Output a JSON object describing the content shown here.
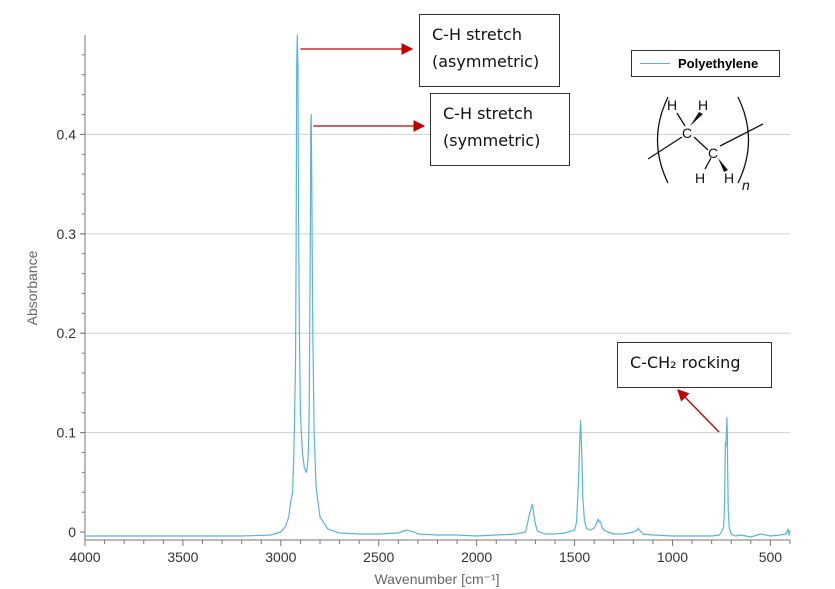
{
  "colors": {
    "series": "#5ab4e0",
    "arrow": "#c00000",
    "grid": "#d0d0d0",
    "axis": "#777777"
  },
  "chart_data": {
    "type": "line",
    "title": "",
    "xlabel": "Wavenumber [cm⁻¹]",
    "ylabel": "Absorbance",
    "xlim": [
      4000,
      400
    ],
    "ylim": [
      -0.008,
      0.5
    ],
    "x_reversed": true,
    "x_ticks": [
      4000,
      3500,
      3000,
      2500,
      2000,
      1500,
      1000,
      500
    ],
    "y_ticks": [
      0,
      0.1,
      0.2,
      0.3,
      0.4
    ],
    "y_tick_labels": [
      "0",
      "0.1",
      "0.2",
      "0.3",
      "0.4"
    ],
    "grid": "horizontal",
    "legend": {
      "position": "top-right",
      "entries": [
        "Polyethylene"
      ]
    },
    "series": [
      {
        "name": "Polyethylene",
        "x": [
          4000,
          3500,
          3200,
          3050,
          3000,
          2975,
          2960,
          2950,
          2940,
          2935,
          2930,
          2925,
          2922,
          2919,
          2916,
          2913,
          2910,
          2905,
          2900,
          2890,
          2880,
          2870,
          2865,
          2860,
          2855,
          2852,
          2849,
          2847,
          2845,
          2842,
          2838,
          2830,
          2820,
          2800,
          2760,
          2700,
          2600,
          2500,
          2400,
          2360,
          2340,
          2320,
          2300,
          2200,
          2100,
          2000,
          1900,
          1800,
          1750,
          1730,
          1720,
          1715,
          1710,
          1700,
          1690,
          1650,
          1600,
          1550,
          1500,
          1490,
          1480,
          1475,
          1472,
          1470,
          1468,
          1465,
          1462,
          1458,
          1450,
          1440,
          1420,
          1400,
          1390,
          1380,
          1378,
          1375,
          1370,
          1365,
          1360,
          1350,
          1330,
          1300,
          1250,
          1200,
          1180,
          1175,
          1170,
          1160,
          1150,
          1100,
          1000,
          900,
          800,
          760,
          740,
          735,
          732,
          730,
          728,
          725,
          722,
          720,
          718,
          715,
          710,
          700,
          680,
          650,
          600,
          550,
          500,
          450,
          420,
          410,
          405,
          400
        ],
        "y": [
          -0.004,
          -0.004,
          -0.004,
          -0.003,
          0.0,
          0.006,
          0.015,
          0.03,
          0.04,
          0.07,
          0.11,
          0.17,
          0.28,
          0.47,
          0.5,
          0.47,
          0.33,
          0.2,
          0.12,
          0.08,
          0.065,
          0.06,
          0.065,
          0.08,
          0.12,
          0.22,
          0.3,
          0.41,
          0.42,
          0.35,
          0.22,
          0.1,
          0.045,
          0.015,
          0.003,
          -0.001,
          -0.002,
          -0.002,
          -0.001,
          0.002,
          0.001,
          0.0,
          -0.002,
          -0.003,
          -0.003,
          -0.004,
          -0.003,
          -0.002,
          0.0,
          0.018,
          0.025,
          0.028,
          0.02,
          0.008,
          0.001,
          -0.002,
          -0.002,
          -0.001,
          0.002,
          0.01,
          0.05,
          0.085,
          0.1,
          0.112,
          0.105,
          0.09,
          0.07,
          0.035,
          0.012,
          0.004,
          0.002,
          0.004,
          0.008,
          0.013,
          0.012,
          0.01,
          0.011,
          0.009,
          0.005,
          0.002,
          0.0,
          -0.002,
          -0.002,
          0.0,
          0.002,
          0.004,
          0.002,
          0.0,
          -0.002,
          -0.003,
          -0.004,
          -0.004,
          -0.004,
          -0.003,
          0.004,
          0.02,
          0.06,
          0.09,
          0.086,
          0.1,
          0.115,
          0.1,
          0.06,
          0.02,
          0.004,
          -0.002,
          -0.004,
          -0.003,
          -0.005,
          -0.002,
          -0.004,
          -0.003,
          -0.002,
          0.003,
          -0.003,
          0.002
        ]
      }
    ],
    "annotations": [
      {
        "id": "asym",
        "lines": [
          "C-H stretch",
          "(asymmetric)"
        ]
      },
      {
        "id": "sym",
        "lines": [
          "C-H stretch",
          "(symmetric)"
        ]
      },
      {
        "id": "rock",
        "lines": [
          "C-CH₂ rocking"
        ]
      }
    ]
  },
  "structure": {
    "atoms": {
      "c": "C",
      "h": "H"
    },
    "subscript": "n"
  }
}
